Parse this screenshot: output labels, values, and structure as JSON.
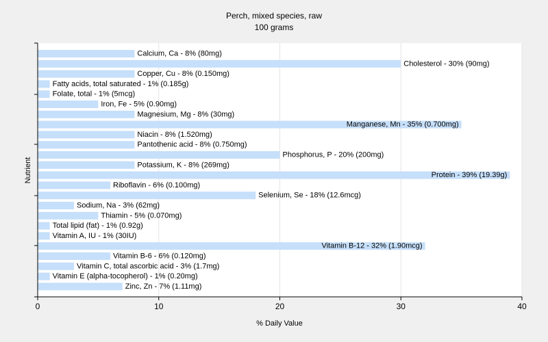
{
  "chart_data": {
    "type": "bar",
    "orientation": "horizontal",
    "title": "Perch, mixed species, raw",
    "subtitle": "100 grams",
    "xlabel": "% Daily Value",
    "ylabel": "Nutrient",
    "xlim": [
      0,
      40
    ],
    "x_ticks": [
      "0",
      "10",
      "20",
      "30",
      "40"
    ],
    "grid": true,
    "bar_color": "#c6dffa",
    "categories": [
      "Calcium, Ca",
      "Cholesterol",
      "Copper, Cu",
      "Fatty acids, total saturated",
      "Folate, total",
      "Iron, Fe",
      "Magnesium, Mg",
      "Manganese, Mn",
      "Niacin",
      "Pantothenic acid",
      "Phosphorus, P",
      "Potassium, K",
      "Protein",
      "Riboflavin",
      "Selenium, Se",
      "Sodium, Na",
      "Thiamin",
      "Total lipid (fat)",
      "Vitamin A, IU",
      "Vitamin B-12",
      "Vitamin B-6",
      "Vitamin C, total ascorbic acid",
      "Vitamin E (alpha-tocopherol)",
      "Zinc, Zn"
    ],
    "values": [
      8,
      30,
      8,
      1,
      1,
      5,
      8,
      35,
      8,
      8,
      20,
      8,
      39,
      6,
      18,
      3,
      5,
      1,
      1,
      32,
      6,
      3,
      1,
      7
    ],
    "labels": [
      "Calcium, Ca - 8% (80mg)",
      "Cholesterol - 30% (90mg)",
      "Copper, Cu - 8% (0.150mg)",
      "Fatty acids, total saturated - 1% (0.185g)",
      "Folate, total - 1% (5mcg)",
      "Iron, Fe - 5% (0.90mg)",
      "Magnesium, Mg - 8% (30mg)",
      "Manganese, Mn - 35% (0.700mg)",
      "Niacin - 8% (1.520mg)",
      "Pantothenic acid - 8% (0.750mg)",
      "Phosphorus, P - 20% (200mg)",
      "Potassium, K - 8% (269mg)",
      "Protein - 39% (19.39g)",
      "Riboflavin - 6% (0.100mg)",
      "Selenium, Se - 18% (12.6mcg)",
      "Sodium, Na - 3% (62mg)",
      "Thiamin - 5% (0.070mg)",
      "Total lipid (fat) - 1% (0.92g)",
      "Vitamin A, IU - 1% (30IU)",
      "Vitamin B-12 - 32% (1.90mcg)",
      "Vitamin B-6 - 6% (0.120mg)",
      "Vitamin C, total ascorbic acid - 3% (1.7mg)",
      "Vitamin E (alpha-tocopherol) - 1% (0.20mg)",
      "Zinc, Zn - 7% (1.11mg)"
    ]
  }
}
